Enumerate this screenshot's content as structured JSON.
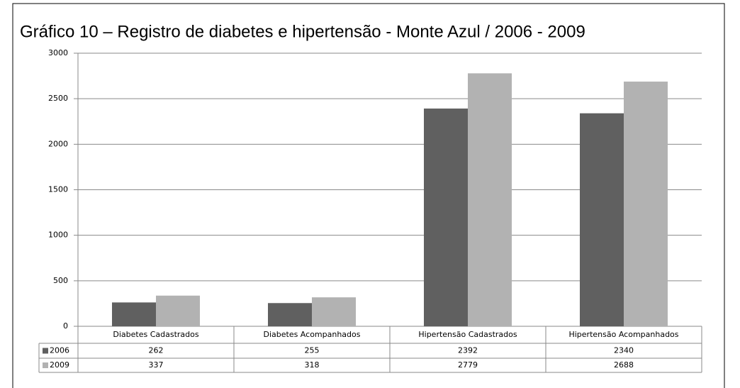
{
  "chart_data": {
    "type": "bar",
    "title": "Gráfico 10 – Registro de diabetes e hipertensão - Monte Azul / 2006 - 2009",
    "categories": [
      "Diabetes Cadastrados",
      "Diabetes Acompanhados",
      "Hipertensão Cadastrados",
      "Hipertensão Acompanhados"
    ],
    "series": [
      {
        "name": "2006",
        "color": "#606060",
        "values": [
          262,
          255,
          2392,
          2340
        ]
      },
      {
        "name": "2009",
        "color": "#b2b2b2",
        "values": [
          337,
          318,
          2779,
          2688
        ]
      }
    ],
    "ylim": [
      0,
      3000
    ],
    "yticks": [
      0,
      500,
      1000,
      1500,
      2000,
      2500,
      3000
    ],
    "grid": true
  }
}
